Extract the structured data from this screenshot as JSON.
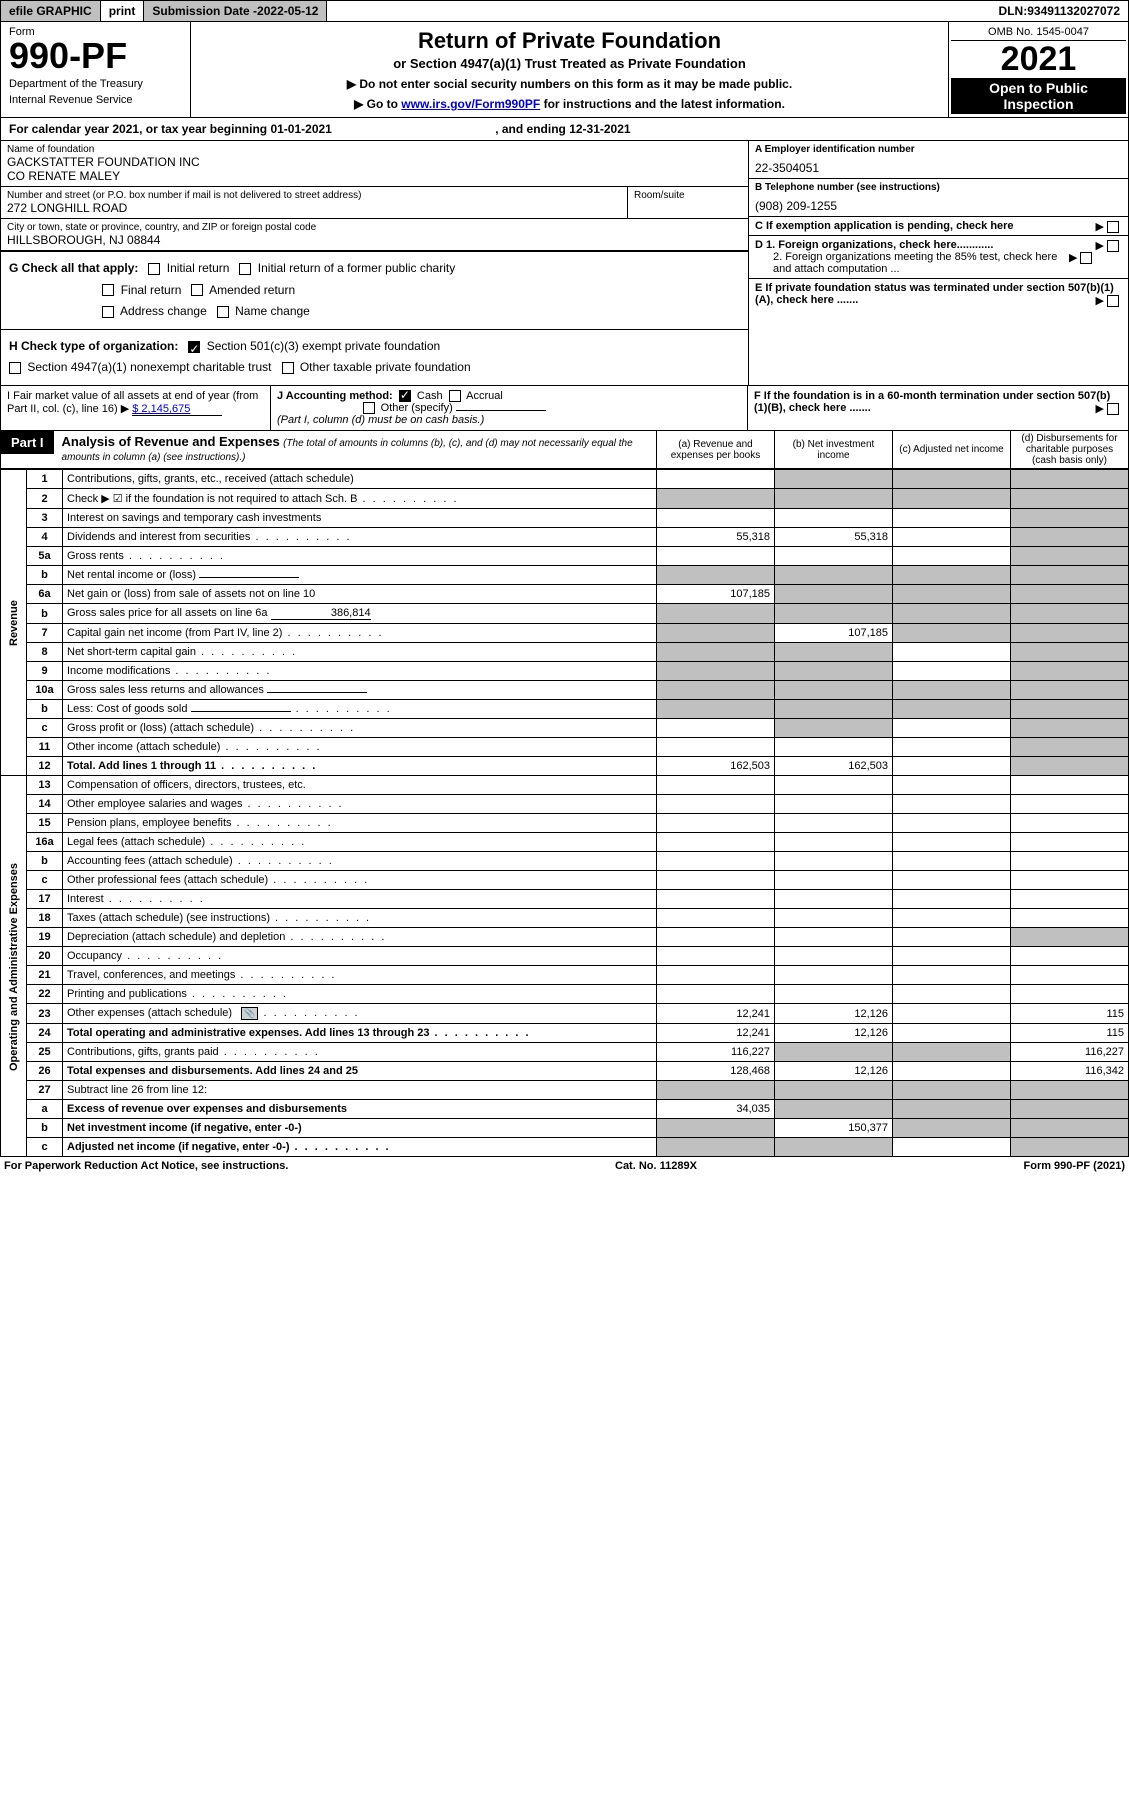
{
  "top": {
    "efile": "efile GRAPHIC",
    "print": "print",
    "sub_label": "Submission Date - ",
    "sub_date": "2022-05-12",
    "dln_label": "DLN: ",
    "dln": "93491132027072"
  },
  "header": {
    "form_word": "Form",
    "form_number": "990-PF",
    "dept1": "Department of the Treasury",
    "dept2": "Internal Revenue Service",
    "title": "Return of Private Foundation",
    "subtitle": "or Section 4947(a)(1) Trust Treated as Private Foundation",
    "instr1": "▶ Do not enter social security numbers on this form as it may be made public.",
    "instr2_prefix": "▶ Go to ",
    "instr2_link": "www.irs.gov/Form990PF",
    "instr2_suffix": " for instructions and the latest information.",
    "omb": "OMB No. 1545-0047",
    "year": "2021",
    "open": "Open to Public Inspection"
  },
  "cal_year": {
    "prefix": "For calendar year 2021, or tax year beginning ",
    "begin": "01-01-2021",
    "mid": " , and ending ",
    "end": "12-31-2021"
  },
  "name": {
    "label": "Name of foundation",
    "line1": "GACKSTATTER FOUNDATION INC",
    "line2": "CO RENATE MALEY"
  },
  "ein": {
    "label": "A Employer identification number",
    "val": "22-3504051"
  },
  "street": {
    "label": "Number and street (or P.O. box number if mail is not delivered to street address)",
    "val": "272 LONGHILL ROAD",
    "room_label": "Room/suite"
  },
  "phone": {
    "label": "B Telephone number (see instructions)",
    "val": "(908) 209-1255"
  },
  "city": {
    "label": "City or town, state or province, country, and ZIP or foreign postal code",
    "val": "HILLSBOROUGH, NJ  08844"
  },
  "boxC": "C  If exemption application is pending, check here",
  "boxG": {
    "label": "G Check all that apply:",
    "opts": [
      "Initial return",
      "Initial return of a former public charity",
      "Final return",
      "Amended return",
      "Address change",
      "Name change"
    ]
  },
  "boxD": {
    "d1": "D 1. Foreign organizations, check here............",
    "d2": "2. Foreign organizations meeting the 85% test, check here and attach computation ..."
  },
  "boxH": {
    "label": "H Check type of organization:",
    "opt1": "Section 501(c)(3) exempt private foundation",
    "opt2": "Section 4947(a)(1) nonexempt charitable trust",
    "opt3": "Other taxable private foundation"
  },
  "boxE": "E  If private foundation status was terminated under section 507(b)(1)(A), check here .......",
  "boxI": {
    "label": "I Fair market value of all assets at end of year (from Part II, col. (c), line 16)",
    "val": "$  2,145,675"
  },
  "boxJ": {
    "label": "J Accounting method:",
    "cash": "Cash",
    "accrual": "Accrual",
    "other": "Other (specify)",
    "note": "(Part I, column (d) must be on cash basis.)"
  },
  "boxF": "F  If the foundation is in a 60-month termination under section 507(b)(1)(B), check here .......",
  "part1": {
    "label": "Part I",
    "title": "Analysis of Revenue and Expenses",
    "note": "(The total of amounts in columns (b), (c), and (d) may not necessarily equal the amounts in column (a) (see instructions).)",
    "col_a": "(a)  Revenue and expenses per books",
    "col_b": "(b)  Net investment income",
    "col_c": "(c)  Adjusted net income",
    "col_d": "(d)  Disbursements for charitable purposes (cash basis only)"
  },
  "side_labels": {
    "revenue": "Revenue",
    "expenses": "Operating and Administrative Expenses"
  },
  "rows": [
    {
      "n": "1",
      "desc": "Contributions, gifts, grants, etc., received (attach schedule)",
      "a": "",
      "b": "",
      "c": "",
      "d": "",
      "shade_b": true,
      "shade_c": true,
      "shade_d": true
    },
    {
      "n": "2",
      "desc": "Check ▶ ☑ if the foundation is not required to attach Sch. B",
      "a": "",
      "b": "",
      "c": "",
      "d": "",
      "shade_a": true,
      "shade_b": true,
      "shade_c": true,
      "shade_d": true,
      "dot": true,
      "has_check": true
    },
    {
      "n": "3",
      "desc": "Interest on savings and temporary cash investments",
      "a": "",
      "b": "",
      "c": "",
      "d": "",
      "shade_d": true
    },
    {
      "n": "4",
      "desc": "Dividends and interest from securities",
      "a": "55,318",
      "b": "55,318",
      "c": "",
      "d": "",
      "shade_d": true,
      "dot": true
    },
    {
      "n": "5a",
      "desc": "Gross rents",
      "a": "",
      "b": "",
      "c": "",
      "d": "",
      "shade_d": true,
      "dot": true
    },
    {
      "n": "b",
      "desc": "Net rental income or (loss)",
      "a": "",
      "b": "",
      "c": "",
      "d": "",
      "shade_a": true,
      "shade_b": true,
      "shade_c": true,
      "shade_d": true,
      "inline_field": true
    },
    {
      "n": "6a",
      "desc": "Net gain or (loss) from sale of assets not on line 10",
      "a": "107,185",
      "b": "",
      "c": "",
      "d": "",
      "shade_b": true,
      "shade_c": true,
      "shade_d": true
    },
    {
      "n": "b",
      "desc": "Gross sales price for all assets on line 6a",
      "a": "",
      "b": "",
      "c": "",
      "d": "",
      "shade_a": true,
      "shade_b": true,
      "shade_c": true,
      "shade_d": true,
      "inline_field": true,
      "inline_val": "386,814"
    },
    {
      "n": "7",
      "desc": "Capital gain net income (from Part IV, line 2)",
      "a": "",
      "b": "107,185",
      "c": "",
      "d": "",
      "shade_a": true,
      "shade_c": true,
      "shade_d": true,
      "dot": true
    },
    {
      "n": "8",
      "desc": "Net short-term capital gain",
      "a": "",
      "b": "",
      "c": "",
      "d": "",
      "shade_a": true,
      "shade_b": true,
      "shade_d": true,
      "dot": true
    },
    {
      "n": "9",
      "desc": "Income modifications",
      "a": "",
      "b": "",
      "c": "",
      "d": "",
      "shade_a": true,
      "shade_b": true,
      "shade_d": true,
      "dot": true
    },
    {
      "n": "10a",
      "desc": "Gross sales less returns and allowances",
      "a": "",
      "b": "",
      "c": "",
      "d": "",
      "shade_a": true,
      "shade_b": true,
      "shade_c": true,
      "shade_d": true,
      "inline_field": true
    },
    {
      "n": "b",
      "desc": "Less: Cost of goods sold",
      "a": "",
      "b": "",
      "c": "",
      "d": "",
      "shade_a": true,
      "shade_b": true,
      "shade_c": true,
      "shade_d": true,
      "inline_field": true,
      "dot": true
    },
    {
      "n": "c",
      "desc": "Gross profit or (loss) (attach schedule)",
      "a": "",
      "b": "",
      "c": "",
      "d": "",
      "shade_b": true,
      "shade_d": true,
      "dot": true
    },
    {
      "n": "11",
      "desc": "Other income (attach schedule)",
      "a": "",
      "b": "",
      "c": "",
      "d": "",
      "shade_d": true,
      "dot": true
    },
    {
      "n": "12",
      "desc": "Total. Add lines 1 through 11",
      "a": "162,503",
      "b": "162,503",
      "c": "",
      "d": "",
      "bold": true,
      "shade_d": true,
      "dot": true
    },
    {
      "n": "13",
      "desc": "Compensation of officers, directors, trustees, etc.",
      "a": "",
      "b": "",
      "c": "",
      "d": ""
    },
    {
      "n": "14",
      "desc": "Other employee salaries and wages",
      "a": "",
      "b": "",
      "c": "",
      "d": "",
      "dot": true
    },
    {
      "n": "15",
      "desc": "Pension plans, employee benefits",
      "a": "",
      "b": "",
      "c": "",
      "d": "",
      "dot": true
    },
    {
      "n": "16a",
      "desc": "Legal fees (attach schedule)",
      "a": "",
      "b": "",
      "c": "",
      "d": "",
      "dot": true
    },
    {
      "n": "b",
      "desc": "Accounting fees (attach schedule)",
      "a": "",
      "b": "",
      "c": "",
      "d": "",
      "dot": true
    },
    {
      "n": "c",
      "desc": "Other professional fees (attach schedule)",
      "a": "",
      "b": "",
      "c": "",
      "d": "",
      "dot": true
    },
    {
      "n": "17",
      "desc": "Interest",
      "a": "",
      "b": "",
      "c": "",
      "d": "",
      "dot": true
    },
    {
      "n": "18",
      "desc": "Taxes (attach schedule) (see instructions)",
      "a": "",
      "b": "",
      "c": "",
      "d": "",
      "dot": true
    },
    {
      "n": "19",
      "desc": "Depreciation (attach schedule) and depletion",
      "a": "",
      "b": "",
      "c": "",
      "d": "",
      "shade_d": true,
      "dot": true
    },
    {
      "n": "20",
      "desc": "Occupancy",
      "a": "",
      "b": "",
      "c": "",
      "d": "",
      "dot": true
    },
    {
      "n": "21",
      "desc": "Travel, conferences, and meetings",
      "a": "",
      "b": "",
      "c": "",
      "d": "",
      "dot": true
    },
    {
      "n": "22",
      "desc": "Printing and publications",
      "a": "",
      "b": "",
      "c": "",
      "d": "",
      "dot": true
    },
    {
      "n": "23",
      "desc": "Other expenses (attach schedule)",
      "a": "12,241",
      "b": "12,126",
      "c": "",
      "d": "115",
      "dot": true,
      "icon": true
    },
    {
      "n": "24",
      "desc": "Total operating and administrative expenses. Add lines 13 through 23",
      "a": "12,241",
      "b": "12,126",
      "c": "",
      "d": "115",
      "bold": true,
      "dot": true
    },
    {
      "n": "25",
      "desc": "Contributions, gifts, grants paid",
      "a": "116,227",
      "b": "",
      "c": "",
      "d": "116,227",
      "shade_b": true,
      "shade_c": true,
      "dot": true
    },
    {
      "n": "26",
      "desc": "Total expenses and disbursements. Add lines 24 and 25",
      "a": "128,468",
      "b": "12,126",
      "c": "",
      "d": "116,342",
      "bold": true
    },
    {
      "n": "27",
      "desc": "Subtract line 26 from line 12:",
      "a": "",
      "b": "",
      "c": "",
      "d": "",
      "shade_a": true,
      "shade_b": true,
      "shade_c": true,
      "shade_d": true
    },
    {
      "n": "a",
      "desc": "Excess of revenue over expenses and disbursements",
      "a": "34,035",
      "b": "",
      "c": "",
      "d": "",
      "bold": true,
      "shade_b": true,
      "shade_c": true,
      "shade_d": true
    },
    {
      "n": "b",
      "desc": "Net investment income (if negative, enter -0-)",
      "a": "",
      "b": "150,377",
      "c": "",
      "d": "",
      "bold": true,
      "shade_a": true,
      "shade_c": true,
      "shade_d": true
    },
    {
      "n": "c",
      "desc": "Adjusted net income (if negative, enter -0-)",
      "a": "",
      "b": "",
      "c": "",
      "d": "",
      "bold": true,
      "shade_a": true,
      "shade_b": true,
      "shade_d": true,
      "dot": true
    }
  ],
  "footer": {
    "left": "For Paperwork Reduction Act Notice, see instructions.",
    "mid": "Cat. No. 11289X",
    "right": "Form 990-PF (2021)"
  },
  "colors": {
    "shade": "#c0c0c0",
    "link": "#0000cc",
    "black": "#000000",
    "white": "#ffffff"
  }
}
